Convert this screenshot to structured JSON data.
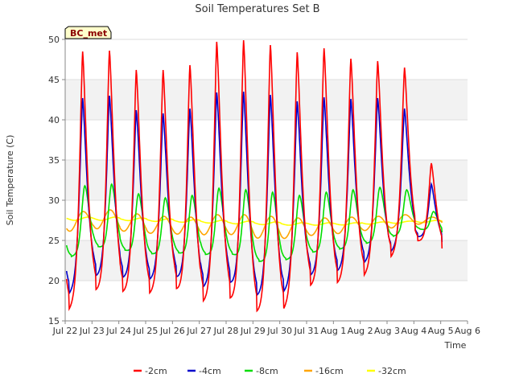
{
  "chart_data": {
    "type": "line",
    "title": "Soil Temperatures Set B",
    "xlabel": "Time",
    "ylabel": "Soil Temperature (C)",
    "station_badge": "BC_met",
    "ylim": [
      15,
      50
    ],
    "xlim": [
      0,
      15
    ],
    "yticks": [
      15,
      20,
      25,
      30,
      35,
      40,
      45,
      50
    ],
    "x_tick_labels": [
      "Jul 22",
      "Jul 23",
      "Jul 24",
      "Jul 25",
      "Jul 26",
      "Jul 27",
      "Jul 28",
      "Jul 29",
      "Jul 30",
      "Jul 31",
      "Aug 1",
      "Aug 2",
      "Aug 3",
      "Aug 4",
      "Aug 5",
      "Aug 6"
    ],
    "x_tick_values": [
      0,
      1,
      2,
      3,
      4,
      5,
      6,
      7,
      8,
      9,
      10,
      11,
      12,
      13,
      14,
      15
    ],
    "grid": true,
    "legend_position": "bottom",
    "day_ticks": [
      0,
      1,
      2,
      3,
      4,
      5,
      6,
      7,
      8,
      9,
      10,
      11,
      12,
      13,
      14
    ],
    "series": [
      {
        "name": "-2cm",
        "color": "#ff0000",
        "days": [
          {
            "day": 0,
            "min": 16.0,
            "max": 48.5
          },
          {
            "day": 1,
            "min": 18.7,
            "max": 48.6
          },
          {
            "day": 2,
            "min": 18.5,
            "max": 46.2
          },
          {
            "day": 3,
            "min": 18.2,
            "max": 46.2
          },
          {
            "day": 4,
            "min": 19.0,
            "max": 46.8
          },
          {
            "day": 5,
            "min": 17.2,
            "max": 49.7
          },
          {
            "day": 6,
            "min": 17.8,
            "max": 49.9
          },
          {
            "day": 7,
            "min": 16.0,
            "max": 49.3
          },
          {
            "day": 8,
            "min": 16.0,
            "max": 48.4
          },
          {
            "day": 9,
            "min": 19.2,
            "max": 48.9
          },
          {
            "day": 10,
            "min": 19.5,
            "max": 47.6
          },
          {
            "day": 11,
            "min": 20.3,
            "max": 47.3
          },
          {
            "day": 12,
            "min": 22.6,
            "max": 46.5
          },
          {
            "day": 13,
            "min": 25.0,
            "max": 34.6
          },
          {
            "day": 14,
            "min": 24.0,
            "max": 24.0
          }
        ]
      },
      {
        "name": "-4cm",
        "color": "#0000cc",
        "days": [
          {
            "day": 0,
            "min": 18.0,
            "max": 42.7
          },
          {
            "day": 1,
            "min": 20.5,
            "max": 43.0
          },
          {
            "day": 2,
            "min": 20.3,
            "max": 41.2
          },
          {
            "day": 3,
            "min": 20.0,
            "max": 40.8
          },
          {
            "day": 4,
            "min": 20.5,
            "max": 41.4
          },
          {
            "day": 5,
            "min": 19.0,
            "max": 43.4
          },
          {
            "day": 6,
            "min": 19.8,
            "max": 43.5
          },
          {
            "day": 7,
            "min": 18.0,
            "max": 43.1
          },
          {
            "day": 8,
            "min": 18.3,
            "max": 42.3
          },
          {
            "day": 9,
            "min": 20.5,
            "max": 42.8
          },
          {
            "day": 10,
            "min": 21.0,
            "max": 42.6
          },
          {
            "day": 11,
            "min": 22.0,
            "max": 42.7
          },
          {
            "day": 12,
            "min": 23.3,
            "max": 41.4
          },
          {
            "day": 13,
            "min": 25.5,
            "max": 32.0
          },
          {
            "day": 14,
            "min": 24.8,
            "max": 24.8
          }
        ]
      },
      {
        "name": "-8cm",
        "color": "#00dd00",
        "days": [
          {
            "day": 0,
            "min": 22.7,
            "max": 31.8
          },
          {
            "day": 1,
            "min": 24.3,
            "max": 32.0
          },
          {
            "day": 2,
            "min": 23.9,
            "max": 30.8
          },
          {
            "day": 3,
            "min": 23.3,
            "max": 30.3
          },
          {
            "day": 4,
            "min": 23.5,
            "max": 30.6
          },
          {
            "day": 5,
            "min": 23.2,
            "max": 31.5
          },
          {
            "day": 6,
            "min": 23.5,
            "max": 31.3
          },
          {
            "day": 7,
            "min": 22.4,
            "max": 31.0
          },
          {
            "day": 8,
            "min": 22.4,
            "max": 30.6
          },
          {
            "day": 9,
            "min": 23.5,
            "max": 31.0
          },
          {
            "day": 10,
            "min": 23.8,
            "max": 31.3
          },
          {
            "day": 11,
            "min": 24.5,
            "max": 31.6
          },
          {
            "day": 12,
            "min": 25.3,
            "max": 31.3
          },
          {
            "day": 13,
            "min": 26.5,
            "max": 28.6
          },
          {
            "day": 14,
            "min": 26.0,
            "max": 26.0
          }
        ]
      },
      {
        "name": "-16cm",
        "color": "#ffa500",
        "days": [
          {
            "day": 0,
            "min": 26.1,
            "max": 28.6
          },
          {
            "day": 1,
            "min": 26.5,
            "max": 28.8
          },
          {
            "day": 2,
            "min": 26.2,
            "max": 28.3
          },
          {
            "day": 3,
            "min": 25.9,
            "max": 28.0
          },
          {
            "day": 4,
            "min": 25.8,
            "max": 27.9
          },
          {
            "day": 5,
            "min": 25.7,
            "max": 28.2
          },
          {
            "day": 6,
            "min": 25.8,
            "max": 28.2
          },
          {
            "day": 7,
            "min": 25.3,
            "max": 28.0
          },
          {
            "day": 8,
            "min": 25.2,
            "max": 27.8
          },
          {
            "day": 9,
            "min": 25.6,
            "max": 27.8
          },
          {
            "day": 10,
            "min": 25.8,
            "max": 27.9
          },
          {
            "day": 11,
            "min": 26.2,
            "max": 28.0
          },
          {
            "day": 12,
            "min": 26.5,
            "max": 28.2
          },
          {
            "day": 13,
            "min": 27.0,
            "max": 27.9
          },
          {
            "day": 14,
            "min": 27.2,
            "max": 27.2
          }
        ]
      },
      {
        "name": "-32cm",
        "color": "#ffff00",
        "days": [
          {
            "day": 0,
            "min": 27.5,
            "max": 27.9
          },
          {
            "day": 1,
            "min": 27.5,
            "max": 27.9
          },
          {
            "day": 2,
            "min": 27.5,
            "max": 27.8
          },
          {
            "day": 3,
            "min": 27.4,
            "max": 27.7
          },
          {
            "day": 4,
            "min": 27.3,
            "max": 27.6
          },
          {
            "day": 5,
            "min": 27.2,
            "max": 27.5
          },
          {
            "day": 6,
            "min": 27.1,
            "max": 27.4
          },
          {
            "day": 7,
            "min": 27.0,
            "max": 27.3
          },
          {
            "day": 8,
            "min": 26.9,
            "max": 27.2
          },
          {
            "day": 9,
            "min": 26.9,
            "max": 27.2
          },
          {
            "day": 10,
            "min": 26.9,
            "max": 27.2
          },
          {
            "day": 11,
            "min": 27.0,
            "max": 27.3
          },
          {
            "day": 12,
            "min": 27.1,
            "max": 27.4
          },
          {
            "day": 13,
            "min": 27.2,
            "max": 27.5
          },
          {
            "day": 14,
            "min": 27.3,
            "max": 27.3
          }
        ]
      }
    ]
  }
}
